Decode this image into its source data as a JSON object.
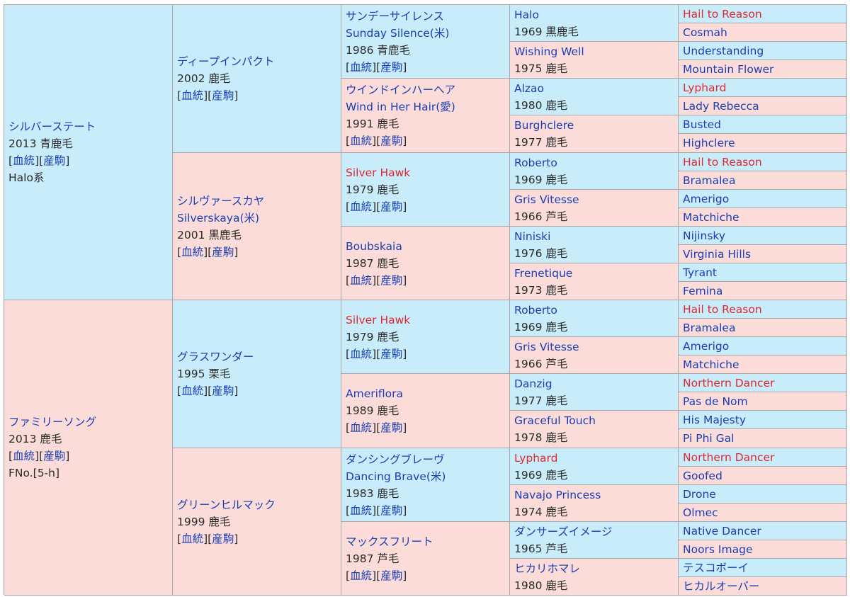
{
  "pedigree": {
    "gen1": [
      {
        "name": "シルバーステート",
        "lines": [
          "2013 青鹿毛"
        ],
        "links": [
          "血統",
          "産駒"
        ],
        "extra": "Halo系",
        "side": "sire"
      },
      {
        "name": "ファミリーソング",
        "lines": [
          "2013 鹿毛"
        ],
        "links": [
          "血統",
          "産駒"
        ],
        "extra": "FNo.[5-h]",
        "side": "dam"
      }
    ],
    "gen2": [
      {
        "name": "ディープインパクト",
        "name2": "",
        "lines": [
          "2002 鹿毛"
        ],
        "links": [
          "血統",
          "産駒"
        ],
        "side": "sire"
      },
      {
        "name": "シルヴァースカヤ",
        "name2": "Silverskaya(米)",
        "lines": [
          "2001 黒鹿毛"
        ],
        "links": [
          "血統",
          "産駒"
        ],
        "side": "dam"
      },
      {
        "name": "グラスワンダー",
        "name2": "",
        "lines": [
          "1995 栗毛"
        ],
        "links": [
          "血統",
          "産駒"
        ],
        "side": "sire"
      },
      {
        "name": "グリーンヒルマック",
        "name2": "",
        "lines": [
          "1999 鹿毛"
        ],
        "links": [
          "血統",
          "産駒"
        ],
        "side": "dam"
      }
    ],
    "gen3": [
      {
        "name": "サンデーサイレンス",
        "name2": "Sunday Silence(米)",
        "lines": [
          "1986 青鹿毛"
        ],
        "links": [
          "血統",
          "産駒"
        ],
        "red": false,
        "side": "sire"
      },
      {
        "name": "ウインドインハーヘア",
        "name2": "Wind in Her Hair(愛)",
        "lines": [
          "1991 鹿毛"
        ],
        "links": [
          "血統",
          "産駒"
        ],
        "red": false,
        "side": "dam"
      },
      {
        "name": "Silver Hawk",
        "name2": "",
        "lines": [
          "1979 鹿毛"
        ],
        "links": [
          "血統",
          "産駒"
        ],
        "red": true,
        "side": "sire"
      },
      {
        "name": "Boubskaia",
        "name2": "",
        "lines": [
          "1987 鹿毛"
        ],
        "links": [
          "血統",
          "産駒"
        ],
        "red": false,
        "side": "dam"
      },
      {
        "name": "Silver Hawk",
        "name2": "",
        "lines": [
          "1979 鹿毛"
        ],
        "links": [
          "血統",
          "産駒"
        ],
        "red": true,
        "side": "sire"
      },
      {
        "name": "Ameriflora",
        "name2": "",
        "lines": [
          "1989 鹿毛"
        ],
        "links": [
          "血統",
          "産駒"
        ],
        "red": false,
        "side": "dam"
      },
      {
        "name": "ダンシングブレーヴ",
        "name2": "Dancing Brave(米)",
        "lines": [
          "1983 鹿毛"
        ],
        "links": [
          "血統",
          "産駒"
        ],
        "red": false,
        "side": "sire"
      },
      {
        "name": "マックスフリート",
        "name2": "",
        "lines": [
          "1987 芦毛"
        ],
        "links": [
          "血統",
          "産駒"
        ],
        "red": false,
        "side": "dam"
      }
    ],
    "gen4": [
      {
        "name": "Halo",
        "line": "1969 黒鹿毛",
        "red": false,
        "side": "sire"
      },
      {
        "name": "Wishing Well",
        "line": "1975 鹿毛",
        "red": false,
        "side": "dam"
      },
      {
        "name": "Alzao",
        "line": "1980 鹿毛",
        "red": false,
        "side": "sire"
      },
      {
        "name": "Burghclere",
        "line": "1977 鹿毛",
        "red": false,
        "side": "dam"
      },
      {
        "name": "Roberto",
        "line": "1969 鹿毛",
        "red": false,
        "side": "sire"
      },
      {
        "name": "Gris Vitesse",
        "line": "1966 芦毛",
        "red": false,
        "side": "dam"
      },
      {
        "name": "Niniski",
        "line": "1976 鹿毛",
        "red": false,
        "side": "sire"
      },
      {
        "name": "Frenetique",
        "line": "1973 鹿毛",
        "red": false,
        "side": "dam"
      },
      {
        "name": "Roberto",
        "line": "1969 鹿毛",
        "red": false,
        "side": "sire"
      },
      {
        "name": "Gris Vitesse",
        "line": "1966 芦毛",
        "red": false,
        "side": "dam"
      },
      {
        "name": "Danzig",
        "line": "1977 鹿毛",
        "red": false,
        "side": "sire"
      },
      {
        "name": "Graceful Touch",
        "line": "1978 鹿毛",
        "red": false,
        "side": "dam"
      },
      {
        "name": "Lyphard",
        "line": "1969 鹿毛",
        "red": true,
        "side": "sire"
      },
      {
        "name": "Navajo Princess",
        "line": "1974 鹿毛",
        "red": false,
        "side": "dam"
      },
      {
        "name": "ダンサーズイメージ",
        "line": "1965 芦毛",
        "red": false,
        "side": "sire"
      },
      {
        "name": "ヒカリホマレ",
        "line": "1980 鹿毛",
        "red": false,
        "side": "dam"
      }
    ],
    "gen5": [
      {
        "name": "Hail to Reason",
        "red": true,
        "side": "sire"
      },
      {
        "name": "Cosmah",
        "red": false,
        "side": "dam"
      },
      {
        "name": "Understanding",
        "red": false,
        "side": "sire"
      },
      {
        "name": "Mountain Flower",
        "red": false,
        "side": "dam"
      },
      {
        "name": "Lyphard",
        "red": true,
        "side": "sire"
      },
      {
        "name": "Lady Rebecca",
        "red": false,
        "side": "dam"
      },
      {
        "name": "Busted",
        "red": false,
        "side": "sire"
      },
      {
        "name": "Highclere",
        "red": false,
        "side": "dam"
      },
      {
        "name": "Hail to Reason",
        "red": true,
        "side": "sire"
      },
      {
        "name": "Bramalea",
        "red": false,
        "side": "dam"
      },
      {
        "name": "Amerigo",
        "red": false,
        "side": "sire"
      },
      {
        "name": "Matchiche",
        "red": false,
        "side": "dam"
      },
      {
        "name": "Nijinsky",
        "red": false,
        "side": "sire"
      },
      {
        "name": "Virginia Hills",
        "red": false,
        "side": "dam"
      },
      {
        "name": "Tyrant",
        "red": false,
        "side": "sire"
      },
      {
        "name": "Femina",
        "red": false,
        "side": "dam"
      },
      {
        "name": "Hail to Reason",
        "red": true,
        "side": "sire"
      },
      {
        "name": "Bramalea",
        "red": false,
        "side": "dam"
      },
      {
        "name": "Amerigo",
        "red": false,
        "side": "sire"
      },
      {
        "name": "Matchiche",
        "red": false,
        "side": "dam"
      },
      {
        "name": "Northern Dancer",
        "red": true,
        "side": "sire"
      },
      {
        "name": "Pas de Nom",
        "red": false,
        "side": "dam"
      },
      {
        "name": "His Majesty",
        "red": false,
        "side": "sire"
      },
      {
        "name": "Pi Phi Gal",
        "red": false,
        "side": "dam"
      },
      {
        "name": "Northern Dancer",
        "red": true,
        "side": "sire"
      },
      {
        "name": "Goofed",
        "red": false,
        "side": "dam"
      },
      {
        "name": "Drone",
        "red": false,
        "side": "sire"
      },
      {
        "name": "Olmec",
        "red": false,
        "side": "dam"
      },
      {
        "name": "Native Dancer",
        "red": false,
        "side": "sire"
      },
      {
        "name": "Noors Image",
        "red": false,
        "side": "dam"
      },
      {
        "name": "テスコボーイ",
        "red": false,
        "side": "sire"
      },
      {
        "name": "ヒカルオーバー",
        "red": false,
        "side": "dam"
      }
    ]
  }
}
